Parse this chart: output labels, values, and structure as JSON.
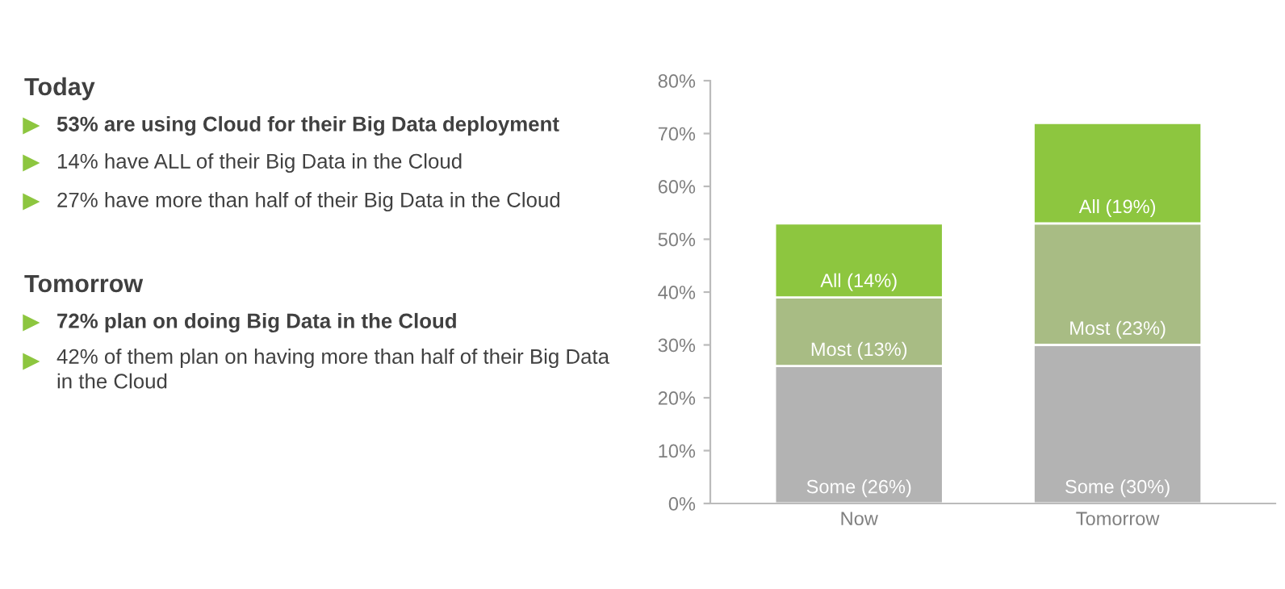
{
  "chart_data": {
    "type": "bar",
    "stacked": true,
    "categories": [
      "Now",
      "Tomorrow"
    ],
    "series": [
      {
        "color": "#b3b3b3",
        "values": [
          26,
          30
        ],
        "value_labels": [
          "Some (26%)",
          "Some (30%)"
        ]
      },
      {
        "color": "#a8bc84",
        "values": [
          13,
          23
        ],
        "value_labels": [
          "Most (13%)",
          "Most (23%)"
        ]
      },
      {
        "color": "#8dc63f",
        "values": [
          14,
          19
        ],
        "value_labels": [
          "All (14%)",
          "All (19%)"
        ]
      }
    ],
    "ylim": [
      0,
      80
    ],
    "yticks": [
      {
        "value": 0,
        "label": "0%"
      },
      {
        "value": 10,
        "label": "10%"
      },
      {
        "value": 20,
        "label": "20%"
      },
      {
        "value": 30,
        "label": "30%"
      },
      {
        "value": 40,
        "label": "40%"
      },
      {
        "value": 50,
        "label": "50%"
      },
      {
        "value": 60,
        "label": "60%"
      },
      {
        "value": 70,
        "label": "70%"
      },
      {
        "value": 80,
        "label": "80%"
      }
    ],
    "grid": false,
    "legend": false,
    "annotations": [
      "Today",
      "53% are using Cloud for their Big Data deployment",
      "14% have ALL of their Big Data in the Cloud",
      "27% have more than half of their Big Data in the Cloud",
      "Tomorrow",
      "72% plan on doing Big Data in the Cloud",
      "42% of them plan on having more than half of their Big Data\nin the Cloud"
    ]
  }
}
